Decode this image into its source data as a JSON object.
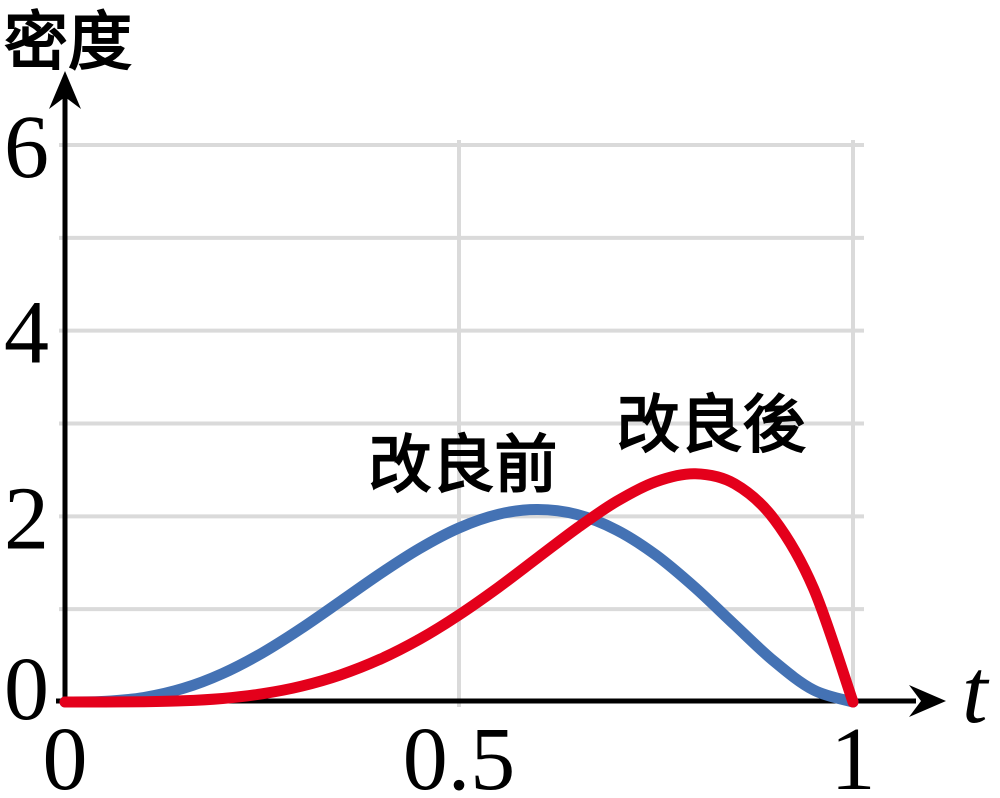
{
  "chart_data": {
    "type": "line",
    "title": "",
    "ylabel": "密度",
    "xlabel": "t",
    "xlim": [
      0,
      1
    ],
    "ylim": [
      0,
      6
    ],
    "grid": {
      "on": true,
      "y_lines": [
        1,
        2,
        3,
        4,
        5,
        6
      ],
      "x_lines": [
        0.5,
        1
      ]
    },
    "x_ticks": [
      {
        "value": 0,
        "label": "0"
      },
      {
        "value": 0.5,
        "label": "0.5"
      },
      {
        "value": 1,
        "label": "1"
      }
    ],
    "y_ticks": [
      {
        "value": 0,
        "label": "0"
      },
      {
        "value": 2,
        "label": "2"
      },
      {
        "value": 4,
        "label": "4"
      },
      {
        "value": 6,
        "label": "6"
      }
    ],
    "legend_position": "inline-annotations",
    "x": [
      0,
      0.05,
      0.1,
      0.15,
      0.2,
      0.25,
      0.3,
      0.35,
      0.4,
      0.45,
      0.5,
      0.55,
      0.6,
      0.65,
      0.7,
      0.75,
      0.8,
      0.85,
      0.9,
      0.95,
      1
    ],
    "series": [
      {
        "name": "改良前",
        "color": "#4472b4",
        "peak": {
          "x": 0.6,
          "y": 2.07
        },
        "label_pos": {
          "x": 0.505,
          "y": 2.57
        },
        "values": [
          0,
          0.007,
          0.049,
          0.146,
          0.307,
          0.527,
          0.794,
          1.087,
          1.382,
          1.654,
          1.875,
          2.022,
          2.074,
          2.019,
          1.852,
          1.582,
          1.229,
          0.829,
          0.437,
          0.129,
          0
        ]
      },
      {
        "name": "改良後",
        "color": "#e4001b",
        "peak": {
          "x": 0.8,
          "y": 2.46
        },
        "label_pos": {
          "x": 0.82,
          "y": 3.0
        },
        "values": [
          0,
          0.0002,
          0.003,
          0.013,
          0.038,
          0.088,
          0.17,
          0.293,
          0.461,
          0.677,
          0.938,
          1.235,
          1.555,
          1.874,
          2.161,
          2.373,
          2.458,
          2.349,
          1.968,
          1.222,
          0
        ]
      }
    ]
  }
}
